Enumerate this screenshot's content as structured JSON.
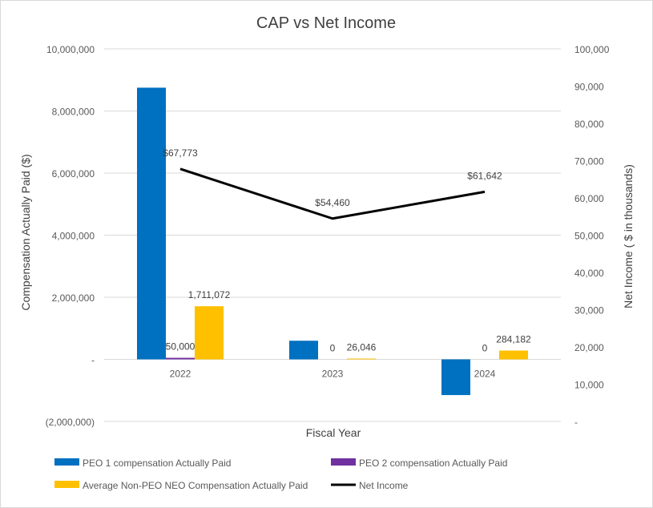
{
  "chart_data": {
    "type": "bar+line",
    "title": "CAP vs Net Income",
    "xlabel": "Fiscal Year",
    "ylabel_left": "Compensation Actually Paid ($)",
    "ylabel_right": "Net Income ( $ in thousands)",
    "categories": [
      "2022",
      "2023",
      "2024"
    ],
    "left_axis": {
      "min": -2000000,
      "max": 10000000,
      "ticks": [
        -2000000,
        0,
        2000000,
        4000000,
        6000000,
        8000000,
        10000000
      ],
      "tick_labels": [
        "(2,000,000)",
        "-",
        "2,000,000",
        "4,000,000",
        "6,000,000",
        "8,000,000",
        "10,000,000"
      ]
    },
    "right_axis": {
      "min": 0,
      "max": 100000,
      "ticks": [
        0,
        10000,
        20000,
        30000,
        40000,
        50000,
        60000,
        70000,
        80000,
        90000,
        100000
      ],
      "tick_labels": [
        "-",
        "10,000",
        "20,000",
        "30,000",
        "40,000",
        "50,000",
        "60,000",
        "70,000",
        "80,000",
        "90,000",
        "100,000"
      ]
    },
    "grid": true,
    "legend_position": "bottom",
    "series": [
      {
        "name": "PEO 1 compensation Actually Paid",
        "type": "bar",
        "color": "#0070C0",
        "values": [
          8750000,
          600000,
          -1150000
        ],
        "labels": [
          "",
          "",
          ""
        ]
      },
      {
        "name": "PEO 2 compensation Actually Paid",
        "type": "bar",
        "color": "#7030A0",
        "values": [
          50000,
          0,
          0
        ],
        "labels": [
          "50,000",
          "0",
          "0"
        ]
      },
      {
        "name": "Average Non-PEO NEO Compensation Actually Paid",
        "type": "bar",
        "color": "#FFC000",
        "values": [
          1711072,
          26046,
          284182
        ],
        "labels": [
          "1,711,072",
          "26,046",
          "284,182"
        ]
      },
      {
        "name": "Net Income",
        "type": "line",
        "axis": "right",
        "color": "#000000",
        "values": [
          67773,
          54460,
          61642
        ],
        "labels": [
          "$67,773",
          "$54,460",
          "$61,642"
        ]
      }
    ]
  }
}
